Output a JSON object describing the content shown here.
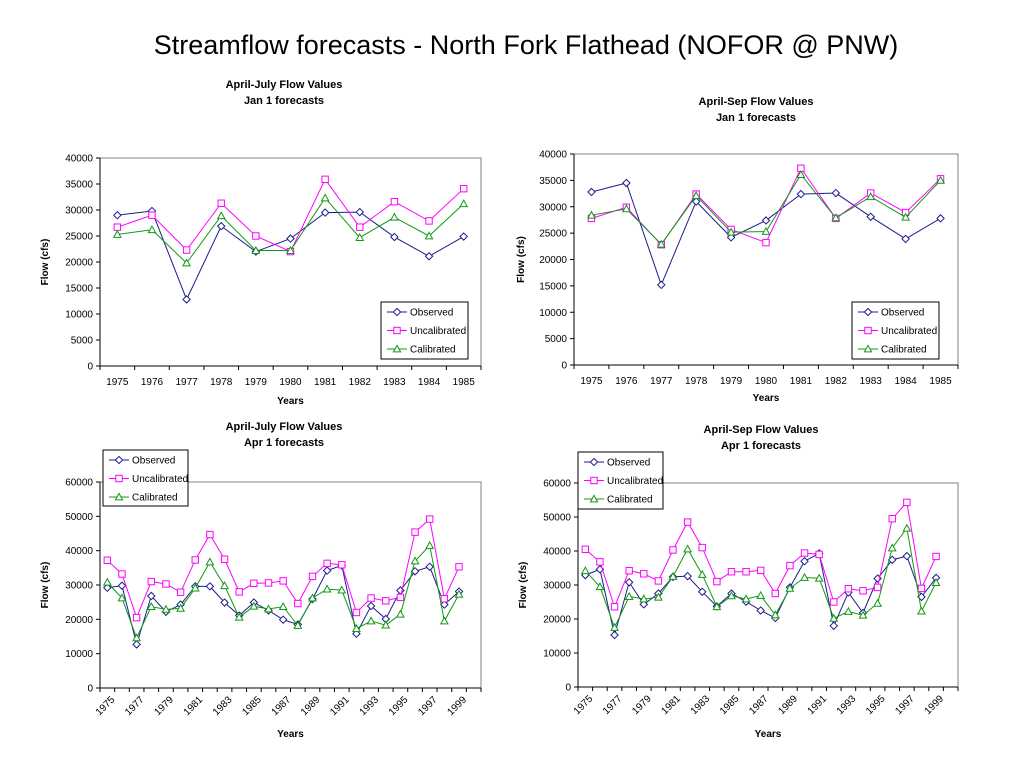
{
  "title": "Streamflow forecasts - North Fork Flathead (NOFOR @ PNW)",
  "colors": {
    "observed": "#1c1c8c",
    "uncalibrated": "#ff00ff",
    "calibrated": "#119911"
  },
  "chart_data": [
    {
      "type": "line",
      "title": "April-July Flow Values",
      "subtitle": "Jan 1 forecasts",
      "xlabel": "Years",
      "ylabel": "Flow (cfs)",
      "x": [
        1975,
        1976,
        1977,
        1978,
        1979,
        1980,
        1981,
        1982,
        1983,
        1984,
        1985
      ],
      "x_tick_labels": [
        "1975",
        "1976",
        "1977",
        "1978",
        "1979",
        "1980",
        "1981",
        "1982",
        "1983",
        "1984",
        "1985"
      ],
      "ylim": [
        0,
        40000
      ],
      "y_ticks": [
        0,
        5000,
        10000,
        15000,
        20000,
        25000,
        30000,
        35000,
        40000
      ],
      "legend_position": "bottom-right",
      "grid": false,
      "series": [
        {
          "name": "Observed",
          "marker": "diamond",
          "values": [
            29000,
            29800,
            12800,
            26900,
            22000,
            24500,
            29500,
            29600,
            24800,
            21100,
            24900
          ]
        },
        {
          "name": "Uncalibrated",
          "marker": "square",
          "values": [
            26700,
            29000,
            22300,
            31300,
            25000,
            22000,
            35900,
            26700,
            31600,
            27900,
            34100
          ]
        },
        {
          "name": "Calibrated",
          "marker": "triangle",
          "values": [
            25300,
            26200,
            19800,
            28900,
            22200,
            22200,
            32300,
            24700,
            28600,
            25000,
            31200
          ]
        }
      ]
    },
    {
      "type": "line",
      "title": "April-Sep Flow Values",
      "subtitle": "Jan 1 forecasts",
      "xlabel": "Years",
      "ylabel": "Flow (cfs)",
      "x": [
        1975,
        1976,
        1977,
        1978,
        1979,
        1980,
        1981,
        1982,
        1983,
        1984,
        1985
      ],
      "x_tick_labels": [
        "1975",
        "1976",
        "1977",
        "1978",
        "1979",
        "1980",
        "1981",
        "1982",
        "1983",
        "1984",
        "1985"
      ],
      "ylim": [
        0,
        40000
      ],
      "y_ticks": [
        0,
        5000,
        10000,
        15000,
        20000,
        25000,
        30000,
        35000,
        40000
      ],
      "legend_position": "bottom-right",
      "grid": false,
      "series": [
        {
          "name": "Observed",
          "marker": "diamond",
          "values": [
            32800,
            34500,
            15200,
            31000,
            24200,
            27400,
            32400,
            32600,
            28100,
            23900,
            27800
          ]
        },
        {
          "name": "Uncalibrated",
          "marker": "square",
          "values": [
            27800,
            29900,
            22800,
            32400,
            25700,
            23200,
            37300,
            27800,
            32600,
            28900,
            35300
          ]
        },
        {
          "name": "Calibrated",
          "marker": "triangle",
          "values": [
            28400,
            29600,
            22900,
            32100,
            25200,
            25300,
            36100,
            27900,
            31900,
            28000,
            35000
          ]
        }
      ]
    },
    {
      "type": "line",
      "title": "April-July Flow Values",
      "subtitle": "Apr 1 forecasts",
      "xlabel": "Years",
      "ylabel": "Flow (cfs)",
      "x": [
        1975,
        1976,
        1977,
        1978,
        1979,
        1980,
        1981,
        1982,
        1983,
        1984,
        1985,
        1986,
        1987,
        1988,
        1989,
        1990,
        1991,
        1992,
        1993,
        1994,
        1995,
        1996,
        1997,
        1998,
        1999,
        2000
      ],
      "x_tick_labels": [
        "1975",
        "1977",
        "1979",
        "1981",
        "1983",
        "1985",
        "1987",
        "1989",
        "1991",
        "1993",
        "1995",
        "1997",
        "1999"
      ],
      "ylim": [
        0,
        60000
      ],
      "y_ticks": [
        0,
        10000,
        20000,
        30000,
        40000,
        50000,
        60000
      ],
      "legend_position": "top-left",
      "grid": false,
      "series": [
        {
          "name": "Observed",
          "marker": "diamond",
          "values": [
            29200,
            29800,
            12700,
            26800,
            22200,
            24300,
            29600,
            29600,
            24900,
            21100,
            24900,
            22600,
            19900,
            18500,
            25900,
            34200,
            35700,
            15800,
            23900,
            20100,
            28400,
            34000,
            35300,
            24300,
            28100,
            null
          ]
        },
        {
          "name": "Uncalibrated",
          "marker": "square",
          "values": [
            37200,
            33200,
            20500,
            31000,
            30300,
            27900,
            37300,
            44700,
            37500,
            28000,
            30500,
            30600,
            31200,
            24600,
            32500,
            36300,
            35900,
            22000,
            26200,
            25400,
            26400,
            45400,
            49200,
            26000,
            35300,
            null
          ]
        },
        {
          "name": "Calibrated",
          "marker": "triangle",
          "values": [
            30800,
            26200,
            14600,
            23700,
            22900,
            23200,
            29100,
            36700,
            29800,
            20600,
            23800,
            23000,
            23700,
            18200,
            26200,
            28800,
            28500,
            17300,
            19500,
            18300,
            21500,
            37000,
            41500,
            19500,
            27300,
            null
          ]
        }
      ]
    },
    {
      "type": "line",
      "title": "April-Sep Flow Values",
      "subtitle": "Apr 1 forecasts",
      "xlabel": "Years",
      "ylabel": "Flow (cfs)",
      "x": [
        1975,
        1976,
        1977,
        1978,
        1979,
        1980,
        1981,
        1982,
        1983,
        1984,
        1985,
        1986,
        1987,
        1988,
        1989,
        1990,
        1991,
        1992,
        1993,
        1994,
        1995,
        1996,
        1997,
        1998,
        1999,
        2000
      ],
      "x_tick_labels": [
        "1975",
        "1977",
        "1979",
        "1981",
        "1983",
        "1985",
        "1987",
        "1989",
        "1991",
        "1993",
        "1995",
        "1997",
        "1999"
      ],
      "ylim": [
        0,
        60000
      ],
      "y_ticks": [
        0,
        10000,
        20000,
        30000,
        40000,
        50000,
        60000
      ],
      "legend_position": "top-left",
      "grid": false,
      "series": [
        {
          "name": "Observed",
          "marker": "diamond",
          "values": [
            32900,
            34600,
            15300,
            30800,
            24300,
            27500,
            32400,
            32600,
            28000,
            23700,
            27500,
            25100,
            22500,
            20300,
            29300,
            37000,
            39300,
            18000,
            27800,
            21800,
            31900,
            37400,
            38500,
            26500,
            32100,
            null
          ]
        },
        {
          "name": "Uncalibrated",
          "marker": "square",
          "values": [
            40500,
            36800,
            23600,
            34200,
            33300,
            31200,
            40300,
            48500,
            41000,
            31000,
            33900,
            33900,
            34300,
            27500,
            35700,
            39400,
            39000,
            25000,
            28900,
            28300,
            29300,
            49500,
            54300,
            29000,
            38400,
            null
          ]
        },
        {
          "name": "Calibrated",
          "marker": "triangle",
          "values": [
            34200,
            29500,
            17500,
            26600,
            25900,
            26400,
            32500,
            40600,
            33100,
            23600,
            26800,
            25900,
            26900,
            21200,
            29000,
            32200,
            32000,
            20200,
            22200,
            21100,
            24600,
            40900,
            46700,
            22300,
            30700,
            null
          ]
        }
      ]
    }
  ]
}
